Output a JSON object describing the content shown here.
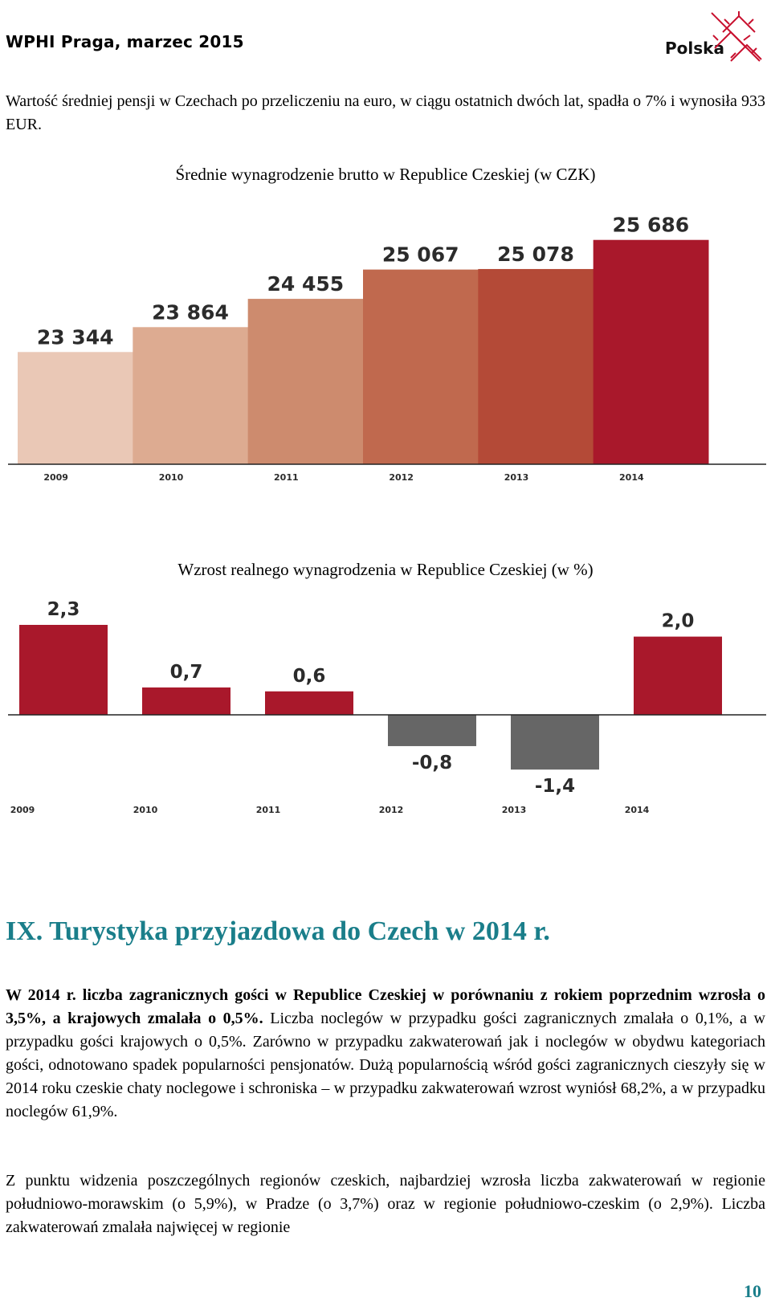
{
  "header": {
    "title": "WPHI  Praga, marzec 2015",
    "logo_text": "Polska"
  },
  "intro_text": "Wartość średniej pensji w Czechach po przeliczeniu na euro, w ciągu ostatnich dwóch lat, spadła o 7% i wynosiła 933 EUR.",
  "chart_data": [
    {
      "type": "bar",
      "title": "Średnie wynagrodzenie brutto w Republice Czeskiej (w CZK)",
      "categories": [
        "2009",
        "2010",
        "2011",
        "2012",
        "2013",
        "2014"
      ],
      "values": [
        23344,
        23864,
        24455,
        25067,
        25078,
        25686
      ],
      "labels": [
        "23 344",
        "23 864",
        "24 455",
        "25 067",
        "25 078",
        "25 686"
      ],
      "colors": [
        "#eac8b6",
        "#ddab91",
        "#cd8b6e",
        "#c0694e",
        "#b44a37",
        "#a9182b"
      ],
      "ylim": [
        21000,
        26000
      ],
      "xlabel": "",
      "ylabel": ""
    },
    {
      "type": "bar",
      "title": "Wzrost realnego wynagrodzenia w Republice Czeskiej (w %)",
      "categories": [
        "2009",
        "2010",
        "2011",
        "2012",
        "2013",
        "2014"
      ],
      "values": [
        2.3,
        0.7,
        0.6,
        -0.8,
        -1.4,
        2.0
      ],
      "labels": [
        "2,3",
        "0,7",
        "0,6",
        "-0,8",
        "-1,4",
        "2,0"
      ],
      "positive_color": "#a9182b",
      "negative_color": "#666666",
      "ylim": [
        -1.4,
        2.3
      ],
      "xlabel": "",
      "ylabel": ""
    }
  ],
  "section": {
    "heading": "IX. Turystyka przyjazdowa do Czech w 2014 r.",
    "p1_bold": "W 2014 r. liczba zagranicznych gości w Republice Czeskiej w porównaniu z rokiem poprzednim wzrosła o 3,5%, a krajowych zmalała o 0,5%.",
    "p1_rest": " Liczba noclegów w przypadku gości zagranicznych zmalała o 0,1%, a w przypadku gości krajowych o 0,5%. Zarówno w przypadku zakwaterowań jak i noclegów w obydwu kategoriach gości, odnotowano spadek popularności pensjonatów. Dużą popularnością wśród gości zagranicznych cieszyły się w 2014 roku czeskie chaty noclegowe i schroniska – w przypadku zakwaterowań wzrost wyniósł 68,2%, a w przypadku noclegów 61,9%.",
    "p2": "Z punktu widzenia poszczególnych regionów czeskich, najbardziej wzrosła liczba zakwaterowań w regionie  południowo-morawskim (o 5,9%), w Pradze (o 3,7%) oraz w regionie południowo-czeskim (o 2,9%). Liczba zakwaterowań zmalała najwięcej w regionie"
  },
  "page_number": "10"
}
